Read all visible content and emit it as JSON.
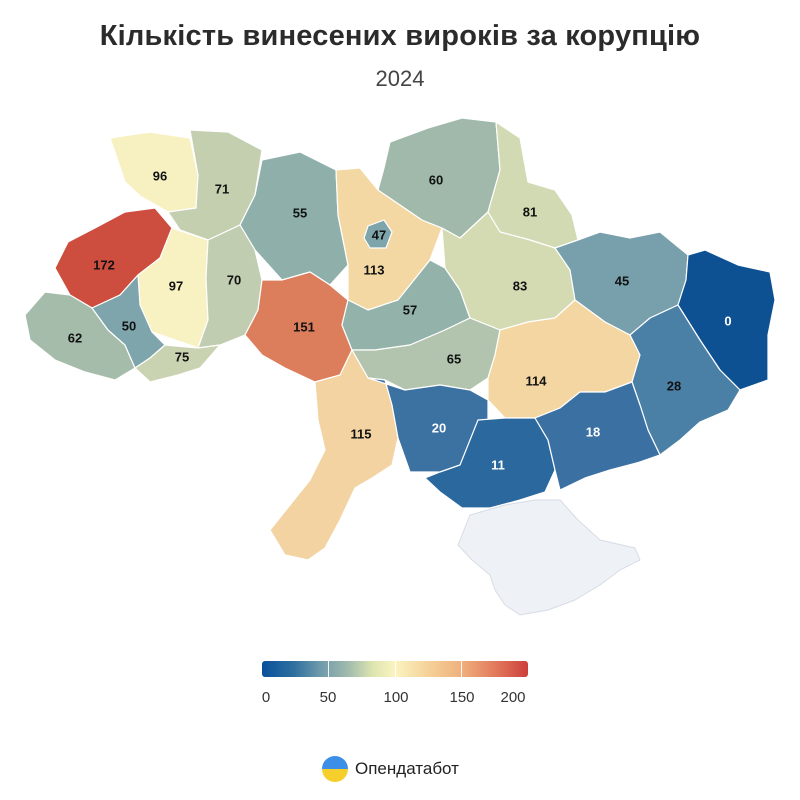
{
  "header": {
    "title": "Кількість винесених вироків за корупцію",
    "subtitle": "2024"
  },
  "map": {
    "regions": [
      {
        "key": "volyn",
        "value": "96",
        "color": "#f7f1c2"
      },
      {
        "key": "rivne",
        "value": "71",
        "color": "#c4cfb0"
      },
      {
        "key": "zhytomyr",
        "value": "55",
        "color": "#8fb0aa"
      },
      {
        "key": "kyiv-oblast",
        "value": "113",
        "color": "#f3d8a3"
      },
      {
        "key": "kyiv-city",
        "value": "47",
        "color": "#7da5ab"
      },
      {
        "key": "chernihiv",
        "value": "60",
        "color": "#a1b9ab"
      },
      {
        "key": "sumy",
        "value": "81",
        "color": "#d2dab3"
      },
      {
        "key": "lviv",
        "value": "172",
        "color": "#cd4e3f"
      },
      {
        "key": "ternopil",
        "value": "97",
        "color": "#f8f1c2"
      },
      {
        "key": "khmelnytskyi",
        "value": "70",
        "color": "#c1cdb0"
      },
      {
        "key": "vinnytsia",
        "value": "151",
        "color": "#dc7d5c"
      },
      {
        "key": "cherkasy",
        "value": "57",
        "color": "#93b2a9"
      },
      {
        "key": "poltava",
        "value": "83",
        "color": "#d4dbb3"
      },
      {
        "key": "kharkiv",
        "value": "45",
        "color": "#779fac"
      },
      {
        "key": "luhansk",
        "value": "0",
        "color": "#0d5193"
      },
      {
        "key": "zakarpattia",
        "value": "62",
        "color": "#a6bcab"
      },
      {
        "key": "ivano-frankivsk",
        "value": "50",
        "color": "#7ea5ab"
      },
      {
        "key": "chernivtsi",
        "value": "75",
        "color": "#c9d3b1"
      },
      {
        "key": "kirovohrad",
        "value": "65",
        "color": "#b2c4ae"
      },
      {
        "key": "dnipro",
        "value": "114",
        "color": "#f3d6a2"
      },
      {
        "key": "donetsk",
        "value": "28",
        "color": "#4b80a6"
      },
      {
        "key": "odesa",
        "value": "115",
        "color": "#f2d3a1"
      },
      {
        "key": "mykolaiv",
        "value": "20",
        "color": "#3b72a2"
      },
      {
        "key": "kherson",
        "value": "11",
        "color": "#2b689e"
      },
      {
        "key": "zaporizhzhia",
        "value": "18",
        "color": "#3a71a2"
      },
      {
        "key": "crimea",
        "value": "",
        "color": "#eef1f6"
      }
    ]
  },
  "legend": {
    "labels": [
      "0",
      "50",
      "100",
      "150",
      "200"
    ],
    "min": 0,
    "max": 200
  },
  "brand": {
    "name": "Опендатабот",
    "logo": "opendatabot-logo"
  }
}
